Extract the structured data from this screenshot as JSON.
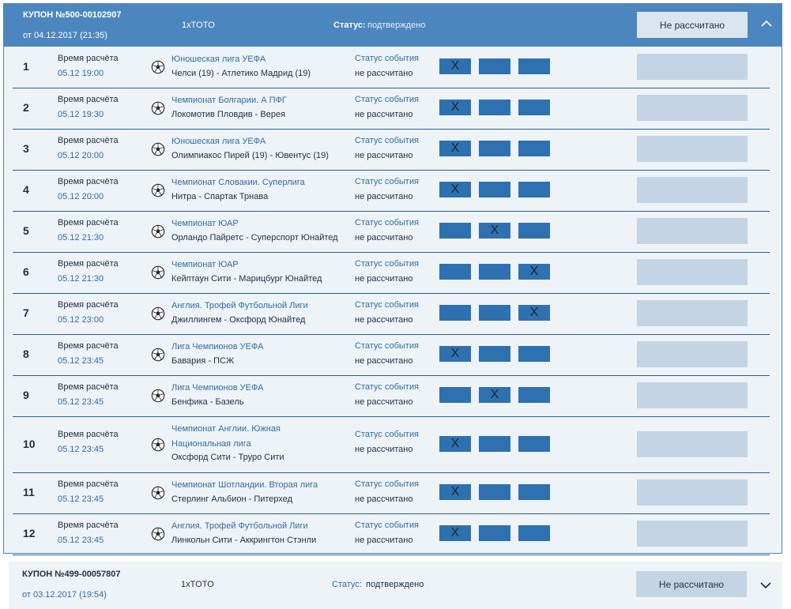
{
  "coupon1": {
    "title": "КУПОН №500-00102907",
    "date": "от 04.12.2017 (21:35)",
    "type": "1xTOTO",
    "status_label": "Статус:",
    "status_value": "подтверждено",
    "result_button": "Не рассчитано",
    "toggle_icon": "chevron-up-icon",
    "rows": [
      {
        "num": "1",
        "time_label": "Время расчёта",
        "time": "05.12 19:00",
        "league": "Юношеская лига УЕФА",
        "teams": "Челси (19) - Атлетико Мадрид (19)",
        "status_label": "Статус события",
        "status_value": "не рассчитано",
        "picks": [
          "X",
          "",
          ""
        ]
      },
      {
        "num": "2",
        "time_label": "Время расчёта",
        "time": "05.12 19:30",
        "league": "Чемпионат Болгарии. А ПФГ",
        "teams": "Локомотив Пловдив - Верея",
        "status_label": "Статус события",
        "status_value": "не рассчитано",
        "picks": [
          "X",
          "",
          ""
        ]
      },
      {
        "num": "3",
        "time_label": "Время расчёта",
        "time": "05.12 20:00",
        "league": "Юношеская лига УЕФА",
        "teams": "Олимпиакос Пирей (19) - Ювентус (19)",
        "status_label": "Статус события",
        "status_value": "не рассчитано",
        "picks": [
          "X",
          "",
          ""
        ]
      },
      {
        "num": "4",
        "time_label": "Время расчёта",
        "time": "05.12 20:00",
        "league": "Чемпионат Словакии. Суперлига",
        "teams": "Нитра - Спартак Трнава",
        "status_label": "Статус события",
        "status_value": "не рассчитано",
        "picks": [
          "X",
          "",
          ""
        ]
      },
      {
        "num": "5",
        "time_label": "Время расчёта",
        "time": "05.12 21:30",
        "league": "Чемпионат ЮАР",
        "teams": "Орландо Пайретс - Суперспорт Юнайтед",
        "status_label": "Статус события",
        "status_value": "не рассчитано",
        "picks": [
          "",
          "X",
          ""
        ]
      },
      {
        "num": "6",
        "time_label": "Время расчёта",
        "time": "05.12 21:30",
        "league": "Чемпионат ЮАР",
        "teams": "Кейптаун Сити - Марицбург Юнайтед",
        "status_label": "Статус события",
        "status_value": "не рассчитано",
        "picks": [
          "",
          "",
          "X"
        ]
      },
      {
        "num": "7",
        "time_label": "Время расчёта",
        "time": "05.12 23:00",
        "league": "Англия. Трофей Футбольной Лиги",
        "teams": "Джиллингем - Оксфорд Юнайтед",
        "status_label": "Статус события",
        "status_value": "не рассчитано",
        "picks": [
          "",
          "",
          "X"
        ]
      },
      {
        "num": "8",
        "time_label": "Время расчёта",
        "time": "05.12 23:45",
        "league": "Лига Чемпионов УЕФА",
        "teams": "Бавария - ПСЖ",
        "status_label": "Статус события",
        "status_value": "не рассчитано",
        "picks": [
          "X",
          "",
          ""
        ]
      },
      {
        "num": "9",
        "time_label": "Время расчёта",
        "time": "05.12 23:45",
        "league": "Лига Чемпионов УЕФА",
        "teams": "Бенфика - Базель",
        "status_label": "Статус события",
        "status_value": "не рассчитано",
        "picks": [
          "",
          "X",
          ""
        ]
      },
      {
        "num": "10",
        "time_label": "Время расчёта",
        "time": "05.12 23:45",
        "league": "Чемпионат Англии. Южная Национальная лига",
        "teams": "Оксфорд Сити - Труро Сити",
        "status_label": "Статус события",
        "status_value": "не рассчитано",
        "picks": [
          "X",
          "",
          ""
        ]
      },
      {
        "num": "11",
        "time_label": "Время расчёта",
        "time": "05.12 23:45",
        "league": "Чемпионат Шотландии. Вторая лига",
        "teams": "Стерлинг Альбион - Питерхед",
        "status_label": "Статус события",
        "status_value": "не рассчитано",
        "picks": [
          "X",
          "",
          ""
        ]
      },
      {
        "num": "12",
        "time_label": "Время расчёта",
        "time": "05.12 23:45",
        "league": "Англия. Трофей Футбольной Лиги",
        "teams": "Линкольн Сити - Аккрингтон Стэнли",
        "status_label": "Статус события",
        "status_value": "не рассчитано",
        "picks": [
          "X",
          "",
          ""
        ]
      }
    ]
  },
  "coupon2": {
    "title": "КУПОН №499-00057807",
    "date": "от 03.12.2017 (19:54)",
    "type": "1xTOTO",
    "status_label": "Статус:",
    "status_value": "подтверждено",
    "result_button": "Не рассчитано",
    "toggle_icon": "chevron-down-icon"
  },
  "colors": {
    "header": "#4c86bf",
    "accent": "#2e71b0",
    "link": "#2e6da4",
    "panel": "#eef3f8",
    "result_placeholder": "#c3d4e4"
  }
}
